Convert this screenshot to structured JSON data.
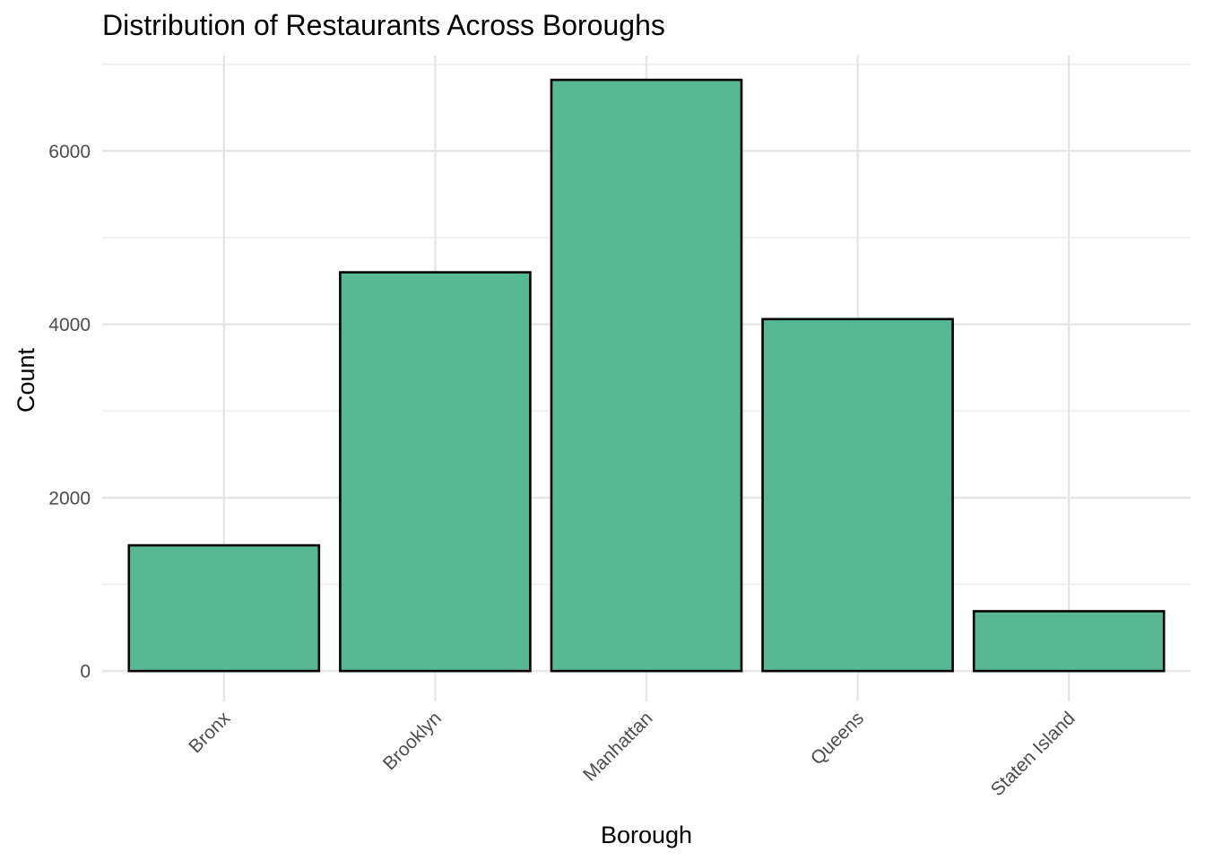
{
  "chart_data": {
    "type": "bar",
    "title": "Distribution of Restaurants Across Boroughs",
    "xlabel": "Borough",
    "ylabel": "Count",
    "categories": [
      "Bronx",
      "Brooklyn",
      "Manhattan",
      "Queens",
      "Staten Island"
    ],
    "values": [
      1450,
      4600,
      6820,
      4060,
      690
    ],
    "ylim": [
      -350,
      7100
    ],
    "yticks": [
      0,
      2000,
      4000,
      6000
    ],
    "ytick_labels": [
      "0",
      "2000",
      "4000",
      "6000"
    ],
    "minor_yticks": [
      1000,
      3000,
      5000,
      7000
    ],
    "grid": true,
    "legend": "none",
    "bar_color": "#57B994",
    "bar_edge_color": "#000000",
    "xtick_rotation": -45
  }
}
